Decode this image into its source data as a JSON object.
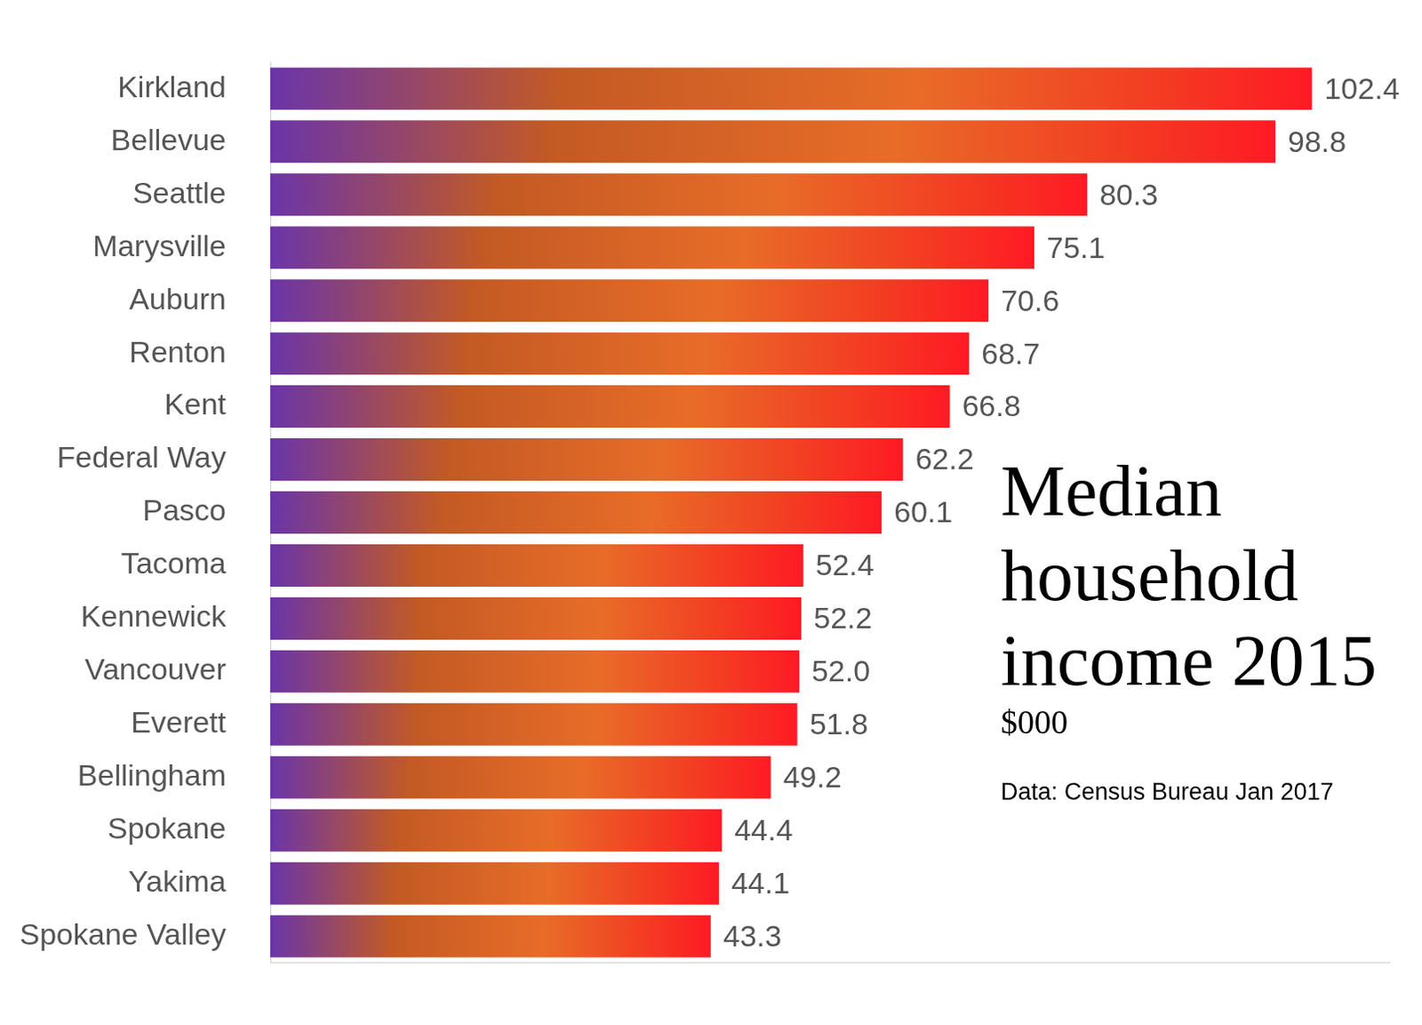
{
  "chart_data": {
    "type": "bar",
    "orientation": "horizontal",
    "title": "Median household income 2015",
    "subtitle": "$000",
    "annotations": [
      "Data: Census Bureau Jan 2017"
    ],
    "categories": [
      "Kirkland",
      "Bellevue",
      "Seattle",
      "Marysville",
      "Auburn",
      "Renton",
      "Kent",
      "Federal Way",
      "Pasco",
      "Tacoma",
      "Kennewick",
      "Vancouver",
      "Everett",
      "Bellingham",
      "Spokane",
      "Yakima",
      "Spokane Valley"
    ],
    "values": [
      102.4,
      98.8,
      80.3,
      75.1,
      70.6,
      68.7,
      66.8,
      62.2,
      60.1,
      52.4,
      52.2,
      52.0,
      51.8,
      49.2,
      44.4,
      44.1,
      43.3
    ],
    "value_labels": [
      "102.4",
      "98.8",
      "80.3",
      "75.1",
      "70.6",
      "68.7",
      "66.8",
      "62.2",
      "60.1",
      "52.4",
      "52.2",
      "52.0",
      "51.8",
      "49.2",
      "44.4",
      "44.1",
      "43.3"
    ],
    "data_labels": true,
    "color": "#ff1a24",
    "xlim": [
      0,
      110
    ],
    "grid": false,
    "tick_labels": "y"
  }
}
